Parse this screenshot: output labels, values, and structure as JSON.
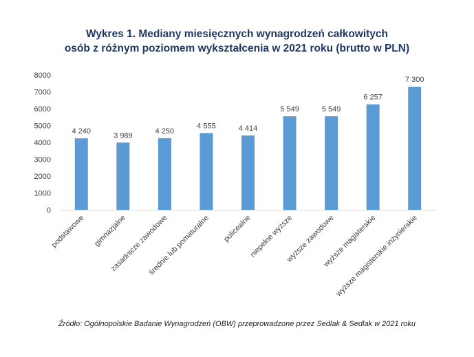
{
  "chart_data": {
    "type": "bar",
    "title": "Wykres 1. Mediany miesięcznych wynagrodzeń całkowitych",
    "subtitle": "osób z różnym poziomem wykształcenia w 2021 roku (brutto w PLN)",
    "categories": [
      "podstawowe",
      "gimnazjalne",
      "zasadnicze zawodowe",
      "średnie lub pomaturalne",
      "policealne",
      "niepełne wyższe",
      "wyższe zawodowe",
      "wyższe magisterskie",
      "wyższe magisterskie inżynierskie"
    ],
    "values": [
      4240,
      3989,
      4250,
      4555,
      4414,
      5549,
      5549,
      6257,
      7300
    ],
    "data_labels": [
      "4 240",
      "3 989",
      "4 250",
      "4 555",
      "4 414",
      "5 549",
      "5 549",
      "6 257",
      "7 300"
    ],
    "yticks": [
      0,
      1000,
      2000,
      3000,
      4000,
      5000,
      6000,
      7000,
      8000
    ],
    "ylim": [
      0,
      8000
    ],
    "xlabel": "",
    "ylabel": "",
    "grid": false,
    "bar_color": "#5b9bd5"
  },
  "source": "Źródło: Ogólnopolskie Badanie Wynagrodzeń (OBW) przeprowadzone przez Sedlak & Sedlak w 2021 roku"
}
